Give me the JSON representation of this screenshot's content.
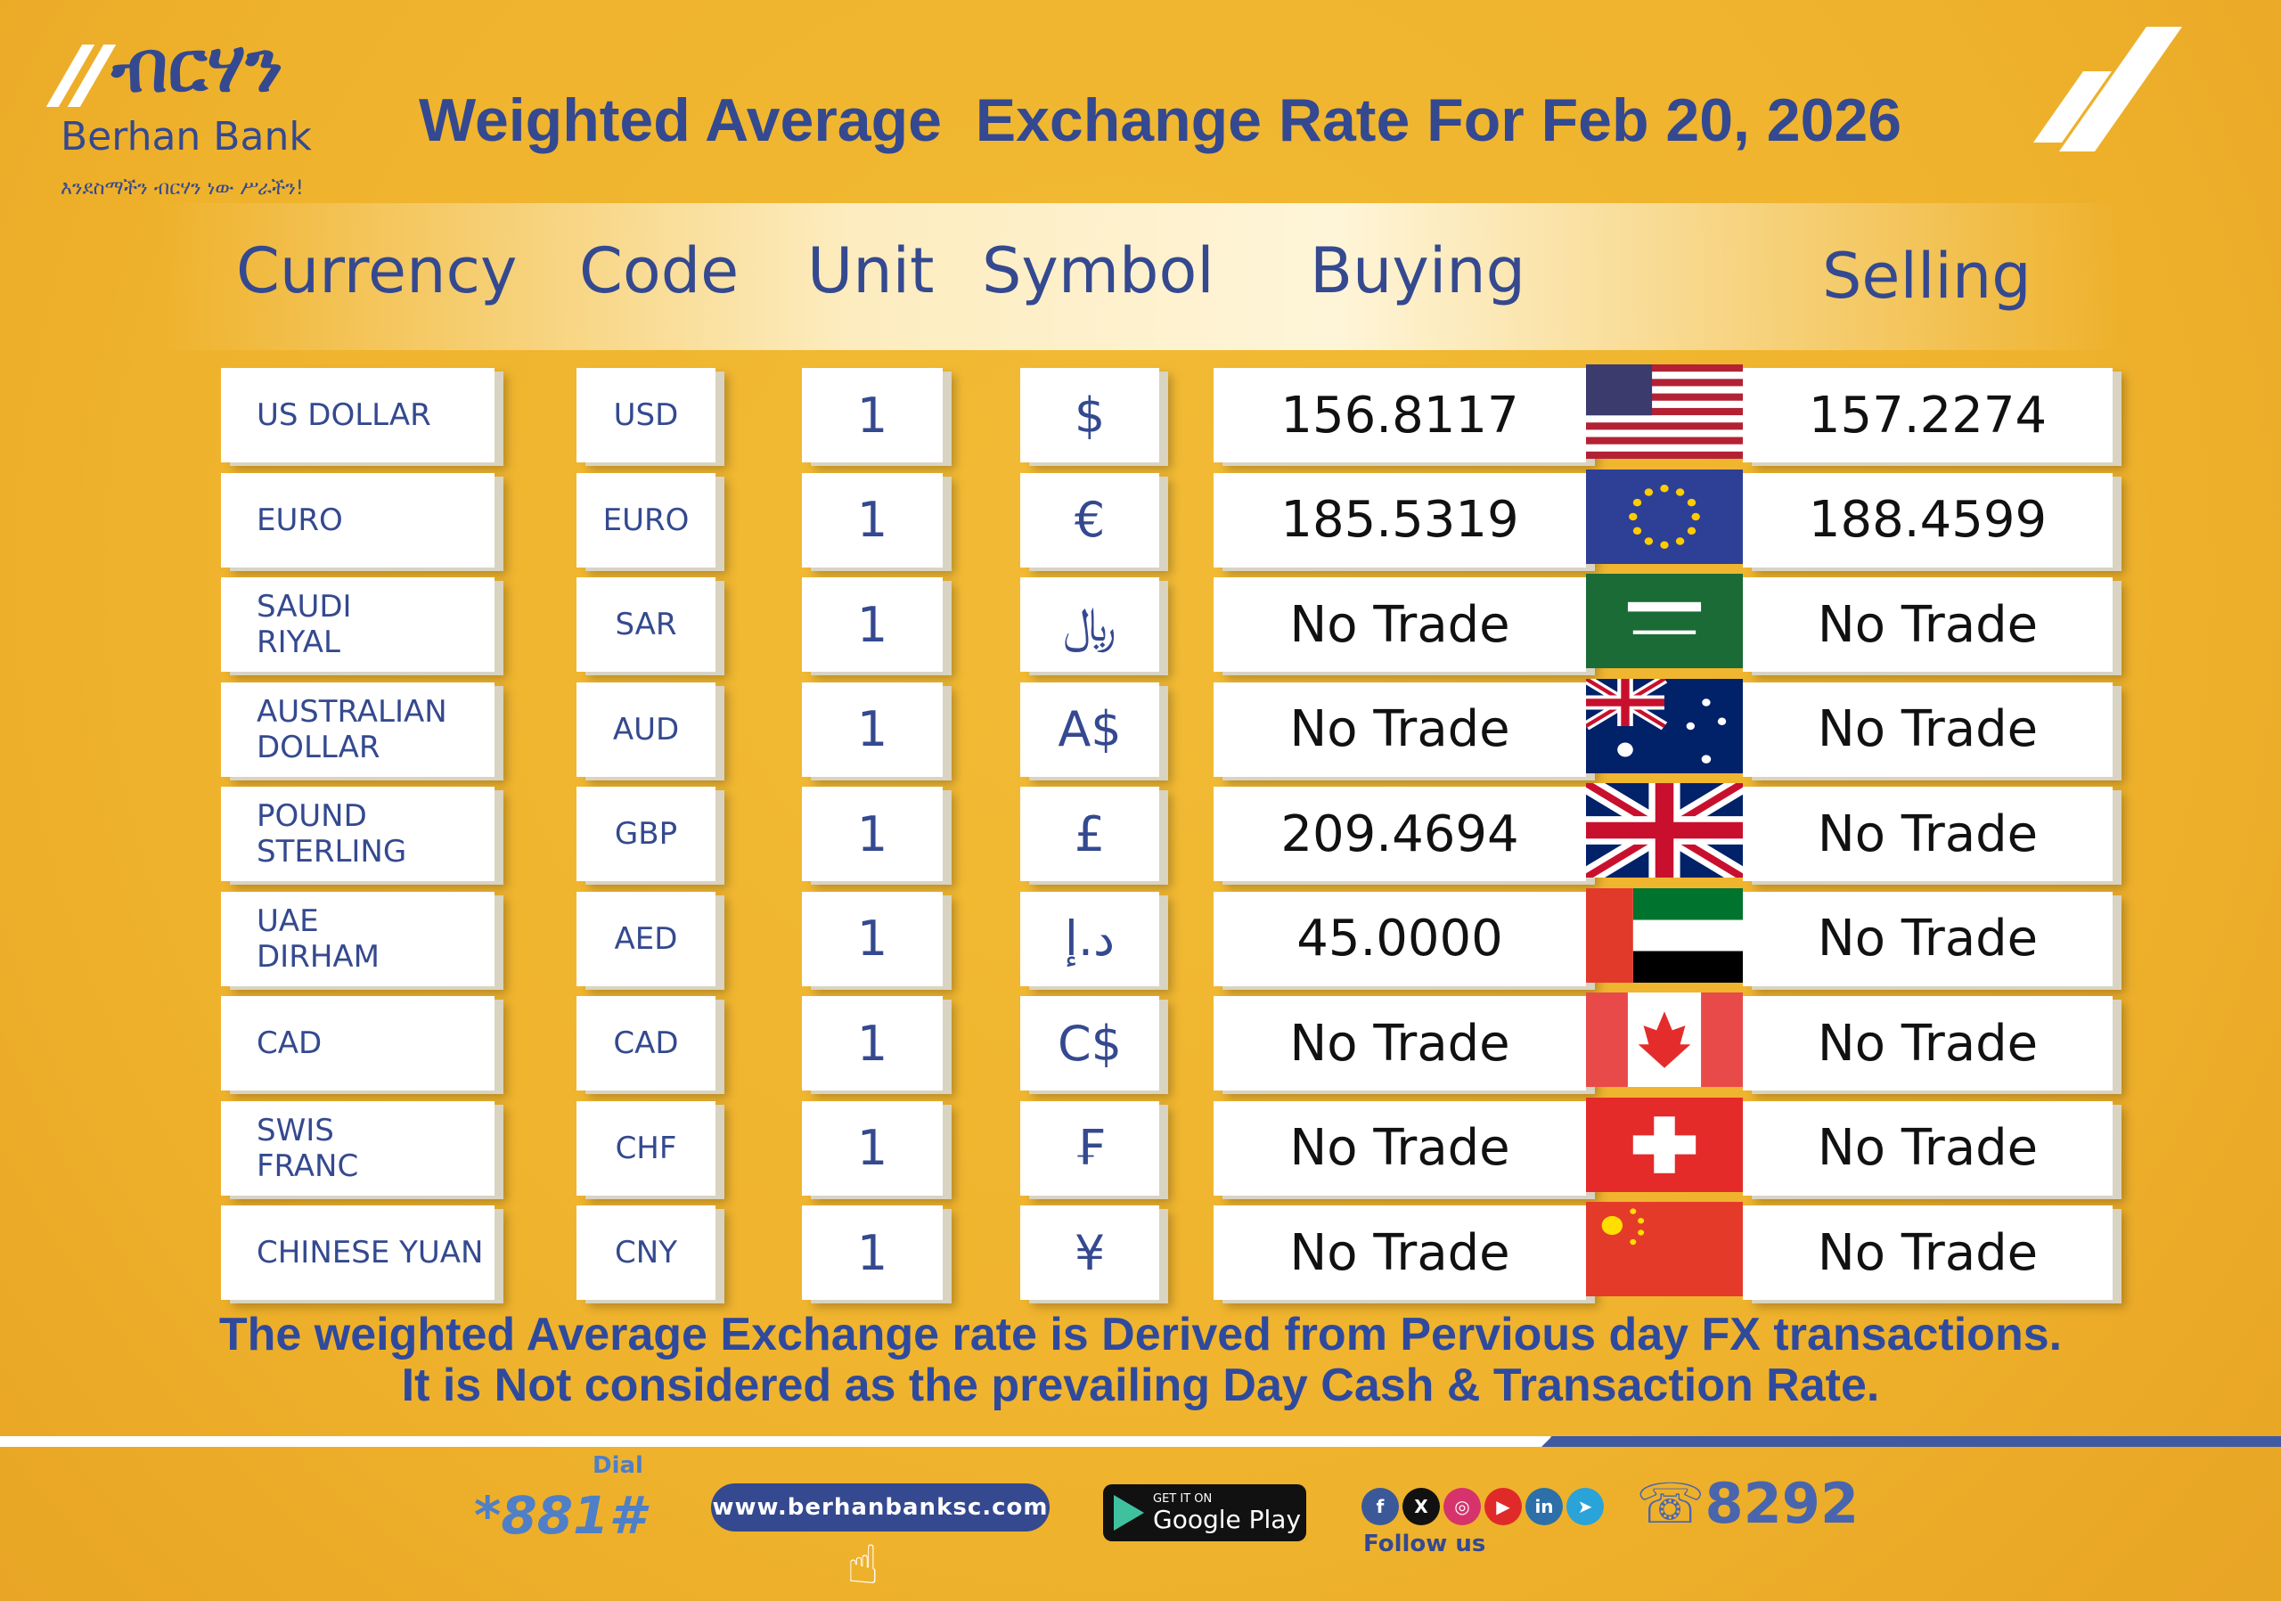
{
  "brand": {
    "logo_amharic": "ብርሃን",
    "name": "Berhan Bank",
    "tagline": "እንደስማችን ብርሃን ነው ሥራችን!"
  },
  "title": "Weighted Average  Exchange Rate For Feb 20, 2026",
  "headers": {
    "currency": "Currency",
    "code": "Code",
    "unit": "Unit",
    "symbol": "Symbol",
    "buying": "Buying",
    "selling": "Selling"
  },
  "rows": [
    {
      "currency": "US DOLLAR",
      "code": "USD",
      "unit": "1",
      "symbol": "$",
      "buying": "156.8117",
      "selling": "157.2274",
      "flag": "us-flag"
    },
    {
      "currency": "EURO",
      "code": "EURO",
      "unit": "1",
      "symbol": "€",
      "buying": "185.5319",
      "selling": "188.4599",
      "flag": "eu-flag"
    },
    {
      "currency": "SAUDI\nRIYAL",
      "code": "SAR",
      "unit": "1",
      "symbol": "﷼",
      "buying": "No Trade",
      "selling": "No Trade",
      "flag": "saudi-flag"
    },
    {
      "currency": "AUSTRALIAN\nDOLLAR",
      "code": "AUD",
      "unit": "1",
      "symbol": "A$",
      "buying": "No Trade",
      "selling": "No Trade",
      "flag": "australia-flag"
    },
    {
      "currency": "POUND\nSTERLING",
      "code": "GBP",
      "unit": "1",
      "symbol": "£",
      "buying": "209.4694",
      "selling": "No Trade",
      "flag": "uk-flag"
    },
    {
      "currency": "UAE\nDIRHAM",
      "code": "AED",
      "unit": "1",
      "symbol": "د.إ",
      "buying": "45.0000",
      "selling": "No Trade",
      "flag": "uae-flag"
    },
    {
      "currency": "CAD",
      "code": "CAD",
      "unit": "1",
      "symbol": "C$",
      "buying": "No Trade",
      "selling": "No Trade",
      "flag": "canada-flag"
    },
    {
      "currency": "SWIS\nFRANC",
      "code": "CHF",
      "unit": "1",
      "symbol": "₣",
      "buying": "No Trade",
      "selling": "No Trade",
      "flag": "swiss-flag"
    },
    {
      "currency": "CHINESE YUAN",
      "code": "CNY",
      "unit": "1",
      "symbol": "¥",
      "buying": "No Trade",
      "selling": "No Trade",
      "flag": "china-flag"
    }
  ],
  "disclaimer": [
    "The weighted Average Exchange rate is Derived from Pervious day FX transactions.",
    "It is Not considered as the prevailing Day Cash & Transaction Rate."
  ],
  "footer": {
    "dial_label": "Dial",
    "ussd": "*881#",
    "website": "www.berhanbanksc.com",
    "store_small": "GET IT ON",
    "store": "Google Play",
    "social": [
      "f",
      "X",
      "◎",
      "▶",
      "in",
      "➤"
    ],
    "follow": "Follow us",
    "phone": "8292"
  },
  "colors": {
    "background": "#eeb02a",
    "text": "#34498f",
    "row_bg": "#ffffff"
  }
}
